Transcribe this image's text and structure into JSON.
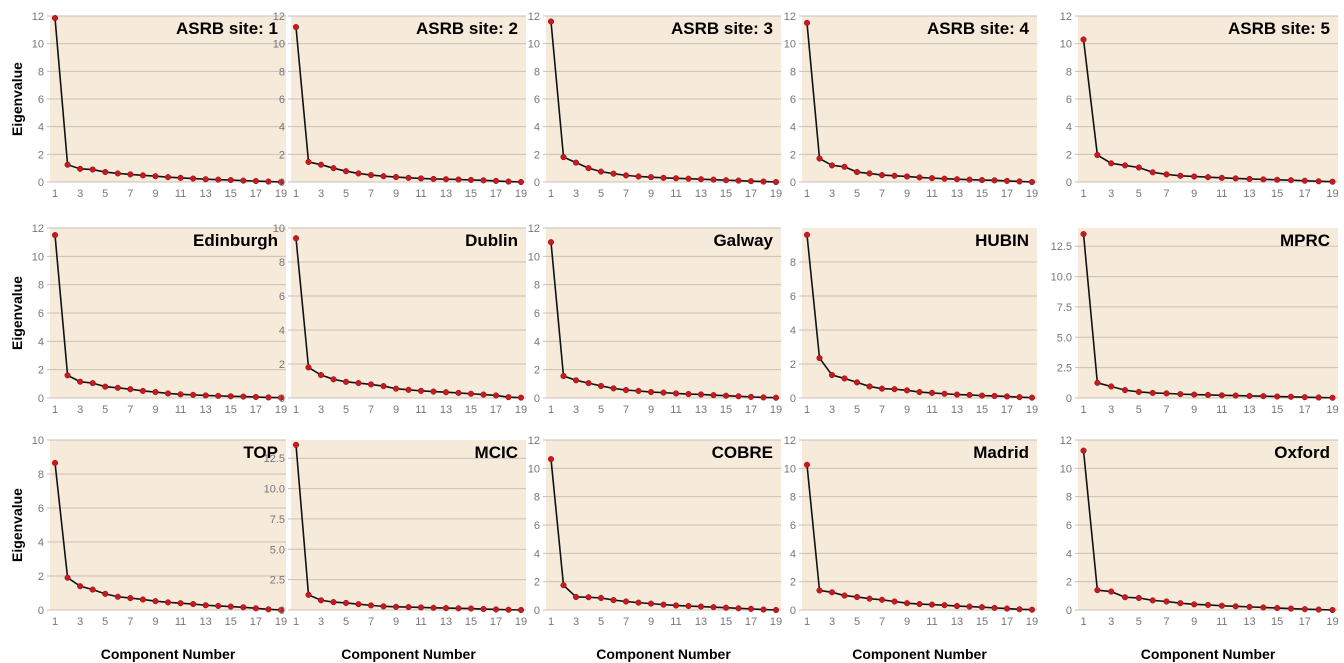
{
  "figure": {
    "x_axis_title": "Component Number",
    "y_axis_title": "Eigenvalue"
  },
  "style": {
    "panel_background": "#f6eadb",
    "point_color": "#c8191f",
    "line_color": "#111111",
    "grid_color": "#c9c0b4"
  },
  "chart_data": [
    {
      "type": "line",
      "title": "ASRB site: 1",
      "x_ticks": [
        "1",
        "3",
        "5",
        "7",
        "9",
        "11",
        "13",
        "15",
        "17",
        "19"
      ],
      "y_ticks": [
        "0",
        "2",
        "4",
        "6",
        "8",
        "10",
        "12"
      ],
      "ylim": [
        0,
        12
      ],
      "x": [
        1,
        2,
        3,
        4,
        5,
        6,
        7,
        8,
        9,
        10,
        11,
        12,
        13,
        14,
        15,
        16,
        17,
        18,
        19
      ],
      "values": [
        11.85,
        1.25,
        0.95,
        0.9,
        0.72,
        0.62,
        0.55,
        0.48,
        0.42,
        0.35,
        0.3,
        0.25,
        0.2,
        0.17,
        0.14,
        0.1,
        0.07,
        0.03,
        0.0
      ]
    },
    {
      "type": "line",
      "title": "ASRB site: 2",
      "x_ticks": [
        "1",
        "3",
        "5",
        "7",
        "9",
        "11",
        "13",
        "15",
        "17",
        "19"
      ],
      "y_ticks": [
        "0",
        "2",
        "4",
        "6",
        "8",
        "10",
        "12"
      ],
      "ylim": [
        0,
        12
      ],
      "x": [
        1,
        2,
        3,
        4,
        5,
        6,
        7,
        8,
        9,
        10,
        11,
        12,
        13,
        14,
        15,
        16,
        17,
        18,
        19
      ],
      "values": [
        11.2,
        1.45,
        1.25,
        1.0,
        0.78,
        0.62,
        0.5,
        0.42,
        0.36,
        0.3,
        0.26,
        0.22,
        0.2,
        0.18,
        0.15,
        0.12,
        0.08,
        0.03,
        0.0
      ]
    },
    {
      "type": "line",
      "title": "ASRB site: 3",
      "x_ticks": [
        "1",
        "3",
        "5",
        "7",
        "9",
        "11",
        "13",
        "15",
        "17",
        "19"
      ],
      "y_ticks": [
        "0",
        "2",
        "4",
        "6",
        "8",
        "10",
        "12"
      ],
      "ylim": [
        0,
        12
      ],
      "x": [
        1,
        2,
        3,
        4,
        5,
        6,
        7,
        8,
        9,
        10,
        11,
        12,
        13,
        14,
        15,
        16,
        17,
        18,
        19
      ],
      "values": [
        11.6,
        1.8,
        1.4,
        1.0,
        0.75,
        0.6,
        0.48,
        0.4,
        0.35,
        0.3,
        0.27,
        0.24,
        0.2,
        0.17,
        0.13,
        0.1,
        0.06,
        0.03,
        0.0
      ]
    },
    {
      "type": "line",
      "title": "ASRB site: 4",
      "x_ticks": [
        "1",
        "3",
        "5",
        "7",
        "9",
        "11",
        "13",
        "15",
        "17",
        "19"
      ],
      "y_ticks": [
        "0",
        "2",
        "4",
        "6",
        "8",
        "10",
        "12"
      ],
      "ylim": [
        0,
        12
      ],
      "x": [
        1,
        2,
        3,
        4,
        5,
        6,
        7,
        8,
        9,
        10,
        11,
        12,
        13,
        14,
        15,
        16,
        17,
        18,
        19
      ],
      "values": [
        11.5,
        1.7,
        1.2,
        1.1,
        0.72,
        0.62,
        0.5,
        0.45,
        0.4,
        0.33,
        0.28,
        0.24,
        0.2,
        0.17,
        0.14,
        0.12,
        0.08,
        0.04,
        0.0
      ]
    },
    {
      "type": "line",
      "title": "ASRB site: 5",
      "x_ticks": [
        "1",
        "3",
        "5",
        "7",
        "9",
        "11",
        "13",
        "15",
        "17",
        "19"
      ],
      "y_ticks": [
        "0",
        "2",
        "4",
        "6",
        "8",
        "10",
        "12"
      ],
      "ylim": [
        0,
        12
      ],
      "x": [
        1,
        2,
        3,
        4,
        5,
        6,
        7,
        8,
        9,
        10,
        11,
        12,
        13,
        14,
        15,
        16,
        17,
        18,
        19
      ],
      "values": [
        10.3,
        1.95,
        1.35,
        1.2,
        1.05,
        0.7,
        0.55,
        0.45,
        0.4,
        0.35,
        0.3,
        0.26,
        0.22,
        0.19,
        0.16,
        0.13,
        0.09,
        0.05,
        0.02
      ]
    },
    {
      "type": "line",
      "title": "Edinburgh",
      "x_ticks": [
        "1",
        "3",
        "5",
        "7",
        "9",
        "11",
        "13",
        "15",
        "17",
        "19"
      ],
      "y_ticks": [
        "0",
        "2",
        "4",
        "6",
        "8",
        "10",
        "12"
      ],
      "ylim": [
        0,
        12
      ],
      "x": [
        1,
        2,
        3,
        4,
        5,
        6,
        7,
        8,
        9,
        10,
        11,
        12,
        13,
        14,
        15,
        16,
        17,
        18,
        19
      ],
      "values": [
        11.5,
        1.6,
        1.15,
        1.05,
        0.8,
        0.72,
        0.62,
        0.5,
        0.42,
        0.32,
        0.26,
        0.22,
        0.18,
        0.15,
        0.12,
        0.1,
        0.07,
        0.04,
        0.02
      ]
    },
    {
      "type": "line",
      "title": "Dublin",
      "x_ticks": [
        "1",
        "3",
        "5",
        "7",
        "9",
        "11",
        "13",
        "15",
        "17",
        "19"
      ],
      "y_ticks": [
        "0",
        "2",
        "4",
        "6",
        "8",
        "10"
      ],
      "ylim": [
        0,
        10
      ],
      "x": [
        1,
        2,
        3,
        4,
        5,
        6,
        7,
        8,
        9,
        10,
        11,
        12,
        13,
        14,
        15,
        16,
        17,
        18,
        19
      ],
      "values": [
        9.4,
        1.8,
        1.35,
        1.1,
        0.95,
        0.88,
        0.8,
        0.7,
        0.55,
        0.48,
        0.42,
        0.38,
        0.34,
        0.3,
        0.25,
        0.2,
        0.15,
        0.05,
        0.02
      ]
    },
    {
      "type": "line",
      "title": "Galway",
      "x_ticks": [
        "1",
        "3",
        "5",
        "7",
        "9",
        "11",
        "13",
        "15",
        "17",
        "19"
      ],
      "y_ticks": [
        "0",
        "2",
        "4",
        "6",
        "8",
        "10",
        "12"
      ],
      "ylim": [
        0,
        12
      ],
      "x": [
        1,
        2,
        3,
        4,
        5,
        6,
        7,
        8,
        9,
        10,
        11,
        12,
        13,
        14,
        15,
        16,
        17,
        18,
        19
      ],
      "values": [
        11.0,
        1.55,
        1.25,
        1.05,
        0.85,
        0.68,
        0.56,
        0.5,
        0.42,
        0.38,
        0.32,
        0.28,
        0.25,
        0.2,
        0.16,
        0.12,
        0.08,
        0.04,
        0.02
      ]
    },
    {
      "type": "line",
      "title": "HUBIN",
      "x_ticks": [
        "1",
        "3",
        "5",
        "7",
        "9",
        "11",
        "13",
        "15",
        "17",
        "19"
      ],
      "y_ticks": [
        "0",
        "2",
        "4",
        "6",
        "8"
      ],
      "ylim": [
        0,
        10
      ],
      "x": [
        1,
        2,
        3,
        4,
        5,
        6,
        7,
        8,
        9,
        10,
        11,
        12,
        13,
        14,
        15,
        16,
        17,
        18,
        19
      ],
      "values": [
        9.6,
        2.35,
        1.35,
        1.15,
        0.92,
        0.68,
        0.55,
        0.52,
        0.45,
        0.35,
        0.3,
        0.25,
        0.2,
        0.18,
        0.14,
        0.12,
        0.09,
        0.05,
        0.02
      ]
    },
    {
      "type": "line",
      "title": "MPRC",
      "x_ticks": [
        "1",
        "3",
        "5",
        "7",
        "9",
        "11",
        "13",
        "15",
        "17",
        "19"
      ],
      "y_ticks": [
        "0",
        "2.5",
        "5.0",
        "7.5",
        "10.0",
        "12.5"
      ],
      "ylim": [
        0,
        14
      ],
      "x": [
        1,
        2,
        3,
        4,
        5,
        6,
        7,
        8,
        9,
        10,
        11,
        12,
        13,
        14,
        15,
        16,
        17,
        18,
        19
      ],
      "values": [
        13.5,
        1.25,
        0.95,
        0.65,
        0.5,
        0.42,
        0.38,
        0.32,
        0.28,
        0.25,
        0.22,
        0.2,
        0.17,
        0.15,
        0.12,
        0.1,
        0.07,
        0.04,
        0.02
      ]
    },
    {
      "type": "line",
      "title": "TOP",
      "x_ticks": [
        "1",
        "3",
        "5",
        "7",
        "9",
        "11",
        "13",
        "15",
        "17",
        "19"
      ],
      "y_ticks": [
        "0",
        "2",
        "4",
        "6",
        "8",
        "10"
      ],
      "ylim": [
        0,
        10
      ],
      "x": [
        1,
        2,
        3,
        4,
        5,
        6,
        7,
        8,
        9,
        10,
        11,
        12,
        13,
        14,
        15,
        16,
        17,
        18,
        19
      ],
      "values": [
        8.65,
        1.9,
        1.4,
        1.2,
        0.95,
        0.78,
        0.7,
        0.62,
        0.52,
        0.45,
        0.4,
        0.35,
        0.28,
        0.24,
        0.2,
        0.16,
        0.1,
        0.04,
        0.0
      ]
    },
    {
      "type": "line",
      "title": "MCIC",
      "x_ticks": [
        "1",
        "3",
        "5",
        "7",
        "9",
        "11",
        "13",
        "15",
        "17",
        "19"
      ],
      "y_ticks": [
        "0",
        "2.5",
        "5.0",
        "7.5",
        "10.0",
        "12.5"
      ],
      "ylim": [
        0,
        14
      ],
      "x": [
        1,
        2,
        3,
        4,
        5,
        6,
        7,
        8,
        9,
        10,
        11,
        12,
        13,
        14,
        15,
        16,
        17,
        18,
        19
      ],
      "values": [
        13.6,
        1.25,
        0.8,
        0.65,
        0.58,
        0.48,
        0.38,
        0.3,
        0.26,
        0.24,
        0.21,
        0.18,
        0.16,
        0.14,
        0.12,
        0.08,
        0.05,
        0.02,
        0.0
      ]
    },
    {
      "type": "line",
      "title": "COBRE",
      "x_ticks": [
        "1",
        "3",
        "5",
        "7",
        "9",
        "11",
        "13",
        "15",
        "17",
        "19"
      ],
      "y_ticks": [
        "0",
        "2",
        "4",
        "6",
        "8",
        "10",
        "12"
      ],
      "ylim": [
        0,
        12
      ],
      "x": [
        1,
        2,
        3,
        4,
        5,
        6,
        7,
        8,
        9,
        10,
        11,
        12,
        13,
        14,
        15,
        16,
        17,
        18,
        19
      ],
      "values": [
        10.65,
        1.75,
        0.92,
        0.9,
        0.85,
        0.7,
        0.6,
        0.52,
        0.45,
        0.38,
        0.32,
        0.28,
        0.24,
        0.2,
        0.16,
        0.12,
        0.08,
        0.03,
        0.0
      ]
    },
    {
      "type": "line",
      "title": "Madrid",
      "x_ticks": [
        "1",
        "3",
        "5",
        "7",
        "9",
        "11",
        "13",
        "15",
        "17",
        "19"
      ],
      "y_ticks": [
        "0",
        "2",
        "4",
        "6",
        "8",
        "10",
        "12"
      ],
      "ylim": [
        0,
        12
      ],
      "x": [
        1,
        2,
        3,
        4,
        5,
        6,
        7,
        8,
        9,
        10,
        11,
        12,
        13,
        14,
        15,
        16,
        17,
        18,
        19
      ],
      "values": [
        10.25,
        1.38,
        1.25,
        1.02,
        0.92,
        0.8,
        0.72,
        0.6,
        0.48,
        0.42,
        0.38,
        0.34,
        0.28,
        0.24,
        0.2,
        0.15,
        0.1,
        0.05,
        0.02
      ]
    },
    {
      "type": "line",
      "title": "Oxford",
      "x_ticks": [
        "1",
        "3",
        "5",
        "7",
        "9",
        "11",
        "13",
        "15",
        "17",
        "19"
      ],
      "y_ticks": [
        "0",
        "2",
        "4",
        "6",
        "8",
        "10",
        "12"
      ],
      "ylim": [
        0,
        12
      ],
      "x": [
        1,
        2,
        3,
        4,
        5,
        6,
        7,
        8,
        9,
        10,
        11,
        12,
        13,
        14,
        15,
        16,
        17,
        18,
        19
      ],
      "values": [
        11.25,
        1.4,
        1.3,
        0.9,
        0.85,
        0.68,
        0.6,
        0.48,
        0.4,
        0.36,
        0.3,
        0.26,
        0.22,
        0.18,
        0.14,
        0.1,
        0.06,
        0.03,
        0.0
      ]
    }
  ]
}
